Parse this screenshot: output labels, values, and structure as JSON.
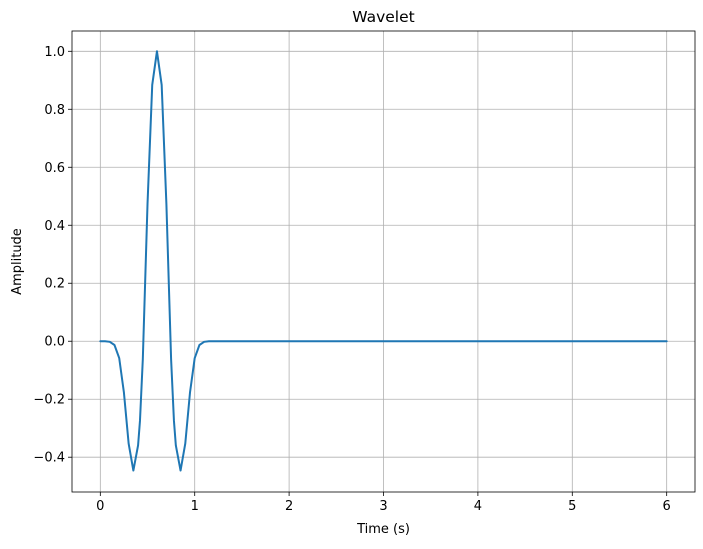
{
  "chart_data": {
    "type": "line",
    "title": "Wavelet",
    "xlabel": "Time (s)",
    "ylabel": "Amplitude",
    "xlim": [
      -0.3,
      6.3
    ],
    "ylim": [
      -0.52,
      1.07
    ],
    "grid": true,
    "x_ticks": [
      0,
      1,
      2,
      3,
      4,
      5,
      6
    ],
    "x_tick_labels": [
      "0",
      "1",
      "2",
      "3",
      "4",
      "5",
      "6"
    ],
    "y_ticks": [
      -0.4,
      -0.2,
      0.0,
      0.2,
      0.4,
      0.6,
      0.8,
      1.0
    ],
    "y_tick_labels": [
      "−0.4",
      "−0.2",
      "0.0",
      "0.2",
      "0.4",
      "0.6",
      "0.8",
      "1.0"
    ],
    "series": [
      {
        "color": "#1f77b4",
        "x": [
          0.0,
          0.05,
          0.1,
          0.15,
          0.2,
          0.25,
          0.3,
          0.35,
          0.4,
          0.42,
          0.45,
          0.5,
          0.55,
          0.6,
          0.65,
          0.7,
          0.75,
          0.78,
          0.8,
          0.85,
          0.9,
          0.95,
          1.0,
          1.05,
          1.1,
          1.15,
          1.2,
          1.5,
          2.0,
          3.0,
          4.0,
          5.0,
          6.0
        ],
        "y": [
          0.0,
          0.0,
          -0.002,
          -0.013,
          -0.058,
          -0.177,
          -0.353,
          -0.446,
          -0.359,
          -0.275,
          -0.063,
          0.474,
          0.884,
          1.0,
          0.884,
          0.474,
          -0.063,
          -0.275,
          -0.359,
          -0.446,
          -0.353,
          -0.177,
          -0.058,
          -0.013,
          -0.002,
          0.0,
          0.0,
          0.0,
          0.0,
          0.0,
          0.0,
          0.0,
          0.0
        ]
      }
    ]
  }
}
